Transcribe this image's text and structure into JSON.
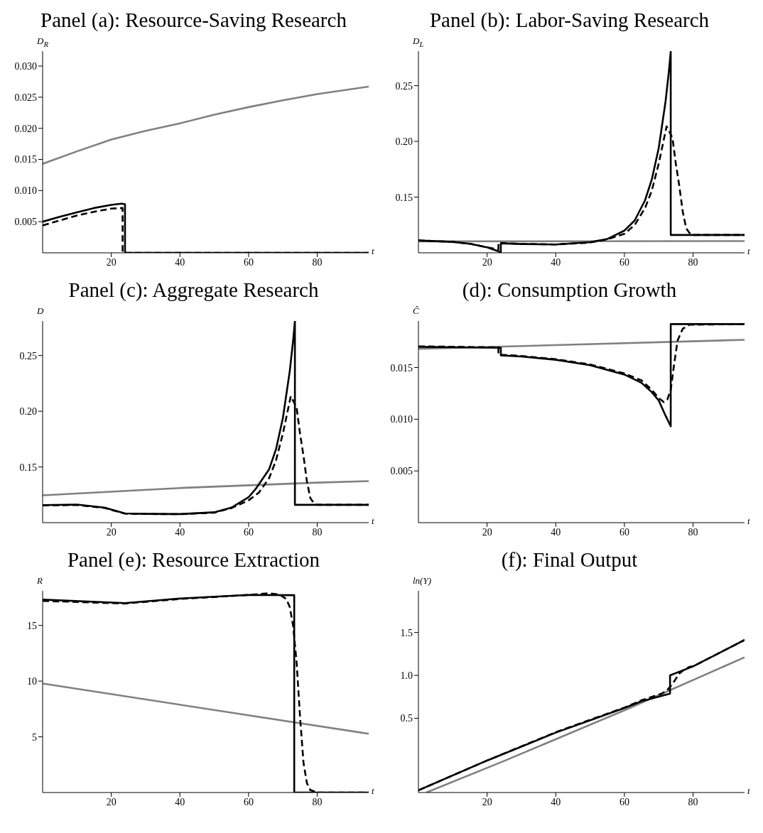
{
  "chart_data": [
    {
      "type": "line",
      "title": "Panel (a): Resource-Saving Research",
      "xlabel": "t",
      "ylabel": "D$_{R}$",
      "xlim": [
        0,
        95
      ],
      "xticks": [
        20,
        40,
        60,
        80
      ],
      "ylim": [
        0,
        0.0324
      ],
      "yticks": [
        0.005,
        {
          "value": 0.01,
          "label": "0.010"
        },
        0.015,
        {
          "value": 0.02,
          "label": "0.020"
        },
        0.025,
        {
          "value": 0.03,
          "label": "0.030"
        }
      ],
      "series": [
        {
          "color": "#808080",
          "line_style": "solid",
          "x": [
            0,
            10,
            20,
            30,
            40,
            50,
            60,
            70,
            80,
            95
          ],
          "values": [
            0.0143,
            0.0163,
            0.0182,
            0.0196,
            0.0208,
            0.0222,
            0.0234,
            0.0245,
            0.0255,
            0.0267
          ]
        },
        {
          "color": "#000000",
          "line_style": "dashed",
          "x": [
            0,
            5,
            10,
            15,
            20,
            23.3,
            23.3,
            95
          ],
          "values": [
            0.0044,
            0.0052,
            0.006,
            0.0066,
            0.0071,
            0.0072,
            0,
            0
          ]
        },
        {
          "color": "#000000",
          "line_style": "solid",
          "x": [
            0,
            5,
            10,
            15,
            20,
            23,
            24,
            24,
            95
          ],
          "values": [
            0.005,
            0.0058,
            0.0065,
            0.0072,
            0.0077,
            0.0079,
            0.0078,
            0,
            0
          ]
        }
      ]
    },
    {
      "type": "line",
      "title": "Panel (b): Labor-Saving Research",
      "xlabel": "t",
      "ylabel": "D$_{L}$",
      "xlim": [
        0,
        95
      ],
      "xticks": [
        20,
        40,
        60,
        80
      ],
      "ylim": [
        0.1,
        0.281
      ],
      "yticks": [
        0.15,
        {
          "value": 0.2,
          "label": "0.20"
        },
        0.25
      ],
      "series": [
        {
          "color": "#808080",
          "line_style": "solid",
          "x": [
            0,
            95
          ],
          "values": [
            0.1103,
            0.1105
          ]
        },
        {
          "color": "#000000",
          "line_style": "dashed",
          "x": [
            0,
            10,
            15,
            20,
            23.3,
            23.3,
            30,
            40,
            50,
            55,
            60,
            63,
            66,
            68,
            70,
            72.3,
            74,
            75,
            76,
            77,
            78,
            79,
            80,
            95
          ],
          "values": [
            0.1111,
            0.1098,
            0.1081,
            0.1049,
            0.103,
            0.109,
            0.108,
            0.1075,
            0.1092,
            0.112,
            0.117,
            0.125,
            0.14,
            0.156,
            0.18,
            0.2135,
            0.2032,
            0.1797,
            0.16,
            0.137,
            0.122,
            0.1177,
            0.116,
            0.116
          ]
        },
        {
          "color": "#000000",
          "line_style": "solid",
          "x": [
            0,
            10,
            15,
            20,
            24,
            24,
            30,
            40,
            50,
            55,
            60,
            63,
            66,
            68,
            70,
            72,
            73,
            73.5,
            73.5,
            95
          ],
          "values": [
            0.1111,
            0.1098,
            0.1081,
            0.1049,
            0.1006,
            0.1085,
            0.1079,
            0.1075,
            0.1096,
            0.1124,
            0.1199,
            0.129,
            0.147,
            0.166,
            0.194,
            0.236,
            0.264,
            0.2806,
            0.116,
            0.116
          ]
        }
      ]
    },
    {
      "type": "line",
      "title": "Panel (c): Aggregate Research",
      "xlabel": "t",
      "ylabel": "D",
      "xlim": [
        0,
        95
      ],
      "xticks": [
        20,
        40,
        60,
        80
      ],
      "ylim": [
        0.1,
        0.281
      ],
      "yticks": [
        0.15,
        {
          "value": 0.2,
          "label": "0.20"
        },
        0.25
      ],
      "series": [
        {
          "color": "#808080",
          "line_style": "solid",
          "x": [
            0,
            40,
            80,
            95
          ],
          "values": [
            0.1245,
            0.1311,
            0.1359,
            0.1373
          ]
        },
        {
          "color": "#000000",
          "line_style": "dashed",
          "x": [
            0,
            10,
            18,
            24,
            30,
            40,
            50,
            55,
            60,
            63,
            66,
            68,
            70,
            72.3,
            74,
            75,
            76,
            77,
            78,
            79,
            80,
            95
          ],
          "values": [
            0.1155,
            0.1158,
            0.1132,
            0.1081,
            0.1078,
            0.1076,
            0.109,
            0.113,
            0.12,
            0.127,
            0.14,
            0.156,
            0.18,
            0.2135,
            0.2032,
            0.1797,
            0.16,
            0.137,
            0.122,
            0.1177,
            0.116,
            0.116
          ]
        },
        {
          "color": "#000000",
          "line_style": "solid",
          "x": [
            0,
            10,
            18,
            24,
            30,
            40,
            50,
            55,
            60,
            62,
            66,
            68,
            70,
            72,
            73,
            73.5,
            73.5,
            95
          ],
          "values": [
            0.1158,
            0.1162,
            0.1135,
            0.1083,
            0.1079,
            0.1077,
            0.1093,
            0.1135,
            0.1228,
            0.13,
            0.148,
            0.166,
            0.194,
            0.236,
            0.264,
            0.281,
            0.116,
            0.116
          ]
        }
      ]
    },
    {
      "type": "line",
      "title": "(d): Consumption Growth",
      "xlabel": "t",
      "ylabel": "Ĉ",
      "xlim": [
        0,
        95
      ],
      "xticks": [
        20,
        40,
        60,
        80
      ],
      "ylim": [
        0,
        0.0195
      ],
      "yticks": [
        0.005,
        {
          "value": 0.01,
          "label": "0.010"
        },
        0.015
      ],
      "series": [
        {
          "color": "#808080",
          "line_style": "solid",
          "x": [
            0,
            95
          ],
          "values": [
            0.0168,
            0.01768
          ]
        },
        {
          "color": "#000000",
          "line_style": "dashed",
          "x": [
            0,
            23.3,
            23.3,
            30,
            40,
            50,
            60,
            65,
            68,
            70,
            71.5,
            72.5,
            73.5,
            74.5,
            75.5,
            77,
            79,
            95
          ],
          "values": [
            0.01705,
            0.01695,
            0.01625,
            0.01612,
            0.0158,
            0.0153,
            0.01443,
            0.01375,
            0.01284,
            0.01205,
            0.01166,
            0.0119,
            0.01284,
            0.01534,
            0.01761,
            0.01875,
            0.01914,
            0.0192
          ]
        },
        {
          "color": "#000000",
          "line_style": "solid",
          "x": [
            0,
            24,
            24,
            30,
            40,
            50,
            60,
            65,
            68,
            70,
            72,
            73.5,
            73.5,
            95
          ],
          "values": [
            0.017,
            0.01691,
            0.01618,
            0.01607,
            0.01575,
            0.01523,
            0.01432,
            0.01352,
            0.01261,
            0.01182,
            0.01034,
            0.00932,
            0.0192,
            0.0192
          ]
        }
      ]
    },
    {
      "type": "line",
      "title": "Panel (e): Resource Extraction",
      "xlabel": "t",
      "ylabel": "R",
      "xlim": [
        0,
        95
      ],
      "xticks": [
        20,
        40,
        60,
        80
      ],
      "ylim": [
        0,
        18.1
      ],
      "yticks": [
        5,
        10,
        15
      ],
      "series": [
        {
          "color": "#808080",
          "line_style": "solid",
          "x": [
            0,
            95
          ],
          "values": [
            9.78,
            5.27
          ]
        },
        {
          "color": "#000000",
          "line_style": "dashed",
          "x": [
            0,
            24,
            40,
            60,
            66,
            69,
            71,
            72,
            73,
            74,
            75,
            76,
            77,
            78,
            80,
            95
          ],
          "values": [
            17.2,
            16.96,
            17.37,
            17.73,
            17.88,
            17.78,
            17.37,
            16.65,
            14.92,
            11.65,
            6.76,
            2.67,
            0.84,
            0.22,
            0,
            0
          ]
        },
        {
          "color": "#000000",
          "line_style": "solid",
          "x": [
            0,
            24,
            40,
            60,
            73.3,
            73.3,
            95
          ],
          "values": [
            17.31,
            17.0,
            17.41,
            17.73,
            17.71,
            0,
            0
          ]
        }
      ]
    },
    {
      "type": "line",
      "title": "(f): Final Output",
      "xlabel": "t",
      "ylabel": "ln(Y)",
      "xlim": [
        0,
        95
      ],
      "xticks": [
        20,
        40,
        60,
        80
      ],
      "ylim": [
        -0.365,
        1.985
      ],
      "yticks": [
        0.5,
        {
          "value": 1,
          "label": "1.0"
        },
        1.5
      ],
      "series": [
        {
          "color": "#808080",
          "line_style": "solid",
          "x": [
            2.3,
            24.8,
            60,
            95
          ],
          "values": [
            -0.365,
            0,
            0.593,
            1.21
          ]
        },
        {
          "color": "#000000",
          "line_style": "dashed",
          "x": [
            0,
            20,
            40,
            60,
            65,
            71,
            72.5,
            74,
            75,
            76,
            77.5,
            79,
            80,
            95
          ],
          "values": [
            -0.339,
            0.008,
            0.338,
            0.625,
            0.71,
            0.79,
            0.83,
            0.9,
            0.96,
            1.02,
            1.07,
            1.1,
            1.105,
            1.412
          ]
        },
        {
          "color": "#000000",
          "line_style": "solid",
          "x": [
            0,
            20,
            40,
            60,
            65,
            73.3,
            73.3,
            80,
            95
          ],
          "values": [
            -0.339,
            0.008,
            0.333,
            0.619,
            0.698,
            0.787,
            1.0,
            1.105,
            1.412
          ]
        }
      ]
    }
  ]
}
